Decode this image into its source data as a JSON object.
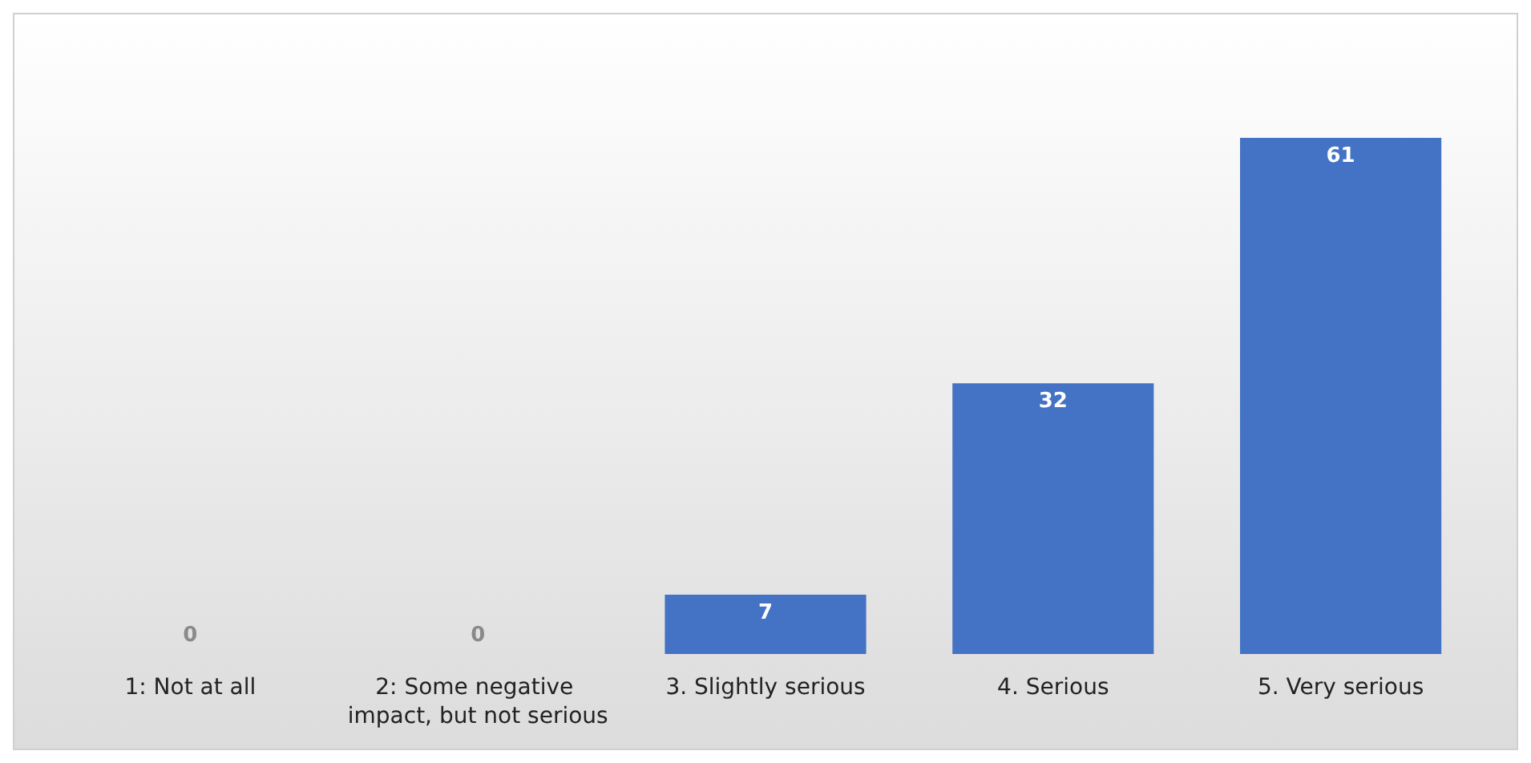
{
  "chart_data": {
    "type": "bar",
    "categories": [
      "1: Not at all",
      "2: Some negative impact, but not serious",
      "3. Slightly serious",
      "4. Serious",
      "5. Very serious"
    ],
    "values": [
      0,
      0,
      7,
      32,
      61
    ],
    "color": "#4472c4",
    "data_labels": true
  }
}
